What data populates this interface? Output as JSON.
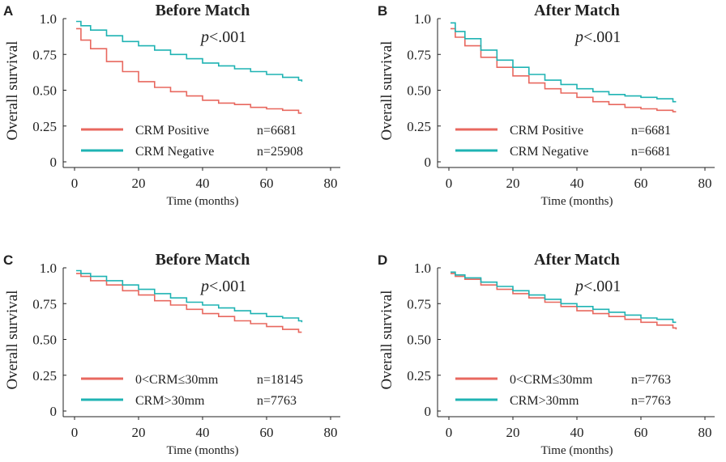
{
  "colors": {
    "positive": "#e8685f",
    "negative": "#1fb3b3",
    "axis": "#222222"
  },
  "chart_data": [
    {
      "type": "line",
      "panel_label": "A",
      "title": "Before Match",
      "pvalue_prefix": "p",
      "pvalue_suffix": "<.001",
      "xlabel": "Time (months)",
      "ylabel": "Overall survival",
      "xlim": [
        0,
        80
      ],
      "ylim": [
        0,
        1.0
      ],
      "x_ticks": [
        "0",
        "20",
        "40",
        "60",
        "80"
      ],
      "y_ticks": [
        "0",
        "0.25",
        "0.50",
        "0.75",
        "1.0"
      ],
      "legend": [
        {
          "label": "CRM Positive",
          "n": "n=6681",
          "color_key": "positive"
        },
        {
          "label": "CRM Negative",
          "n": "n=25908",
          "color_key": "negative"
        }
      ],
      "series": [
        {
          "name": "CRM Positive",
          "color_key": "positive",
          "x": [
            0.5,
            2,
            5,
            10,
            15,
            20,
            25,
            30,
            35,
            40,
            45,
            50,
            55,
            60,
            65,
            70,
            71
          ],
          "y": [
            0.93,
            0.85,
            0.79,
            0.7,
            0.63,
            0.56,
            0.52,
            0.49,
            0.46,
            0.43,
            0.41,
            0.4,
            0.38,
            0.37,
            0.36,
            0.34,
            0.34
          ]
        },
        {
          "name": "CRM Negative",
          "color_key": "negative",
          "x": [
            0.5,
            2,
            5,
            10,
            15,
            20,
            25,
            30,
            35,
            40,
            45,
            50,
            55,
            60,
            65,
            70,
            71
          ],
          "y": [
            0.98,
            0.95,
            0.92,
            0.88,
            0.84,
            0.81,
            0.78,
            0.75,
            0.72,
            0.69,
            0.67,
            0.65,
            0.63,
            0.61,
            0.59,
            0.57,
            0.56
          ]
        }
      ]
    },
    {
      "type": "line",
      "panel_label": "B",
      "title": "After Match",
      "pvalue_prefix": "p",
      "pvalue_suffix": "<.001",
      "xlabel": "Time (months)",
      "ylabel": "Overall survival",
      "xlim": [
        0,
        80
      ],
      "ylim": [
        0,
        1.0
      ],
      "x_ticks": [
        "0",
        "20",
        "40",
        "60",
        "80"
      ],
      "y_ticks": [
        "0",
        "0.25",
        "0.50",
        "0.75",
        "1.0"
      ],
      "legend": [
        {
          "label": "CRM Positive",
          "n": "n=6681",
          "color_key": "positive"
        },
        {
          "label": "CRM Negative",
          "n": "n=6681",
          "color_key": "negative"
        }
      ],
      "series": [
        {
          "name": "CRM Positive",
          "color_key": "positive",
          "x": [
            0.5,
            2,
            5,
            10,
            15,
            20,
            25,
            30,
            35,
            40,
            45,
            50,
            55,
            60,
            65,
            70,
            71
          ],
          "y": [
            0.93,
            0.87,
            0.81,
            0.73,
            0.66,
            0.6,
            0.55,
            0.51,
            0.48,
            0.45,
            0.42,
            0.4,
            0.38,
            0.37,
            0.36,
            0.35,
            0.35
          ]
        },
        {
          "name": "CRM Negative",
          "color_key": "negative",
          "x": [
            0.5,
            2,
            5,
            10,
            15,
            20,
            25,
            30,
            35,
            40,
            45,
            50,
            55,
            60,
            65,
            70,
            71
          ],
          "y": [
            0.97,
            0.91,
            0.86,
            0.78,
            0.71,
            0.66,
            0.61,
            0.57,
            0.54,
            0.51,
            0.49,
            0.47,
            0.46,
            0.45,
            0.44,
            0.42,
            0.42
          ]
        }
      ]
    },
    {
      "type": "line",
      "panel_label": "C",
      "title": "Before Match",
      "pvalue_prefix": "p",
      "pvalue_suffix": "<.001",
      "xlabel": "Time (months)",
      "ylabel": "Overall survival",
      "xlim": [
        0,
        80
      ],
      "ylim": [
        0,
        1.0
      ],
      "x_ticks": [
        "0",
        "20",
        "40",
        "60",
        "80"
      ],
      "y_ticks": [
        "0",
        "0.25",
        "0.50",
        "0.75",
        "1.0"
      ],
      "legend": [
        {
          "label": "0<CRM≤30mm",
          "n": "n=18145",
          "color_key": "positive"
        },
        {
          "label": "CRM>30mm",
          "n": "n=7763",
          "color_key": "negative"
        }
      ],
      "series": [
        {
          "name": "0<CRM≤30mm",
          "color_key": "positive",
          "x": [
            0.5,
            2,
            5,
            10,
            15,
            20,
            25,
            30,
            35,
            40,
            45,
            50,
            55,
            60,
            65,
            70,
            71
          ],
          "y": [
            0.96,
            0.94,
            0.91,
            0.88,
            0.84,
            0.81,
            0.77,
            0.74,
            0.71,
            0.68,
            0.66,
            0.63,
            0.61,
            0.59,
            0.57,
            0.55,
            0.55
          ]
        },
        {
          "name": "CRM>30mm",
          "color_key": "negative",
          "x": [
            0.5,
            2,
            5,
            10,
            15,
            20,
            25,
            30,
            35,
            40,
            45,
            50,
            55,
            60,
            65,
            70,
            71
          ],
          "y": [
            0.98,
            0.96,
            0.94,
            0.91,
            0.88,
            0.85,
            0.82,
            0.79,
            0.76,
            0.74,
            0.72,
            0.7,
            0.68,
            0.66,
            0.65,
            0.63,
            0.62
          ]
        }
      ]
    },
    {
      "type": "line",
      "panel_label": "D",
      "title": "After Match",
      "pvalue_prefix": "p",
      "pvalue_suffix": "<.001",
      "xlabel": "Time (months)",
      "ylabel": "Overall survival",
      "xlim": [
        0,
        80
      ],
      "ylim": [
        0,
        1.0
      ],
      "x_ticks": [
        "0",
        "20",
        "40",
        "60",
        "80"
      ],
      "y_ticks": [
        "0",
        "0.25",
        "0.50",
        "0.75",
        "1.0"
      ],
      "legend": [
        {
          "label": "0<CRM≤30mm",
          "n": "n=7763",
          "color_key": "positive"
        },
        {
          "label": "CRM>30mm",
          "n": "n=7763",
          "color_key": "negative"
        }
      ],
      "series": [
        {
          "name": "0<CRM≤30mm",
          "color_key": "positive",
          "x": [
            0.5,
            2,
            5,
            10,
            15,
            20,
            25,
            30,
            35,
            40,
            45,
            50,
            55,
            60,
            65,
            70,
            71
          ],
          "y": [
            0.96,
            0.94,
            0.92,
            0.88,
            0.85,
            0.82,
            0.79,
            0.76,
            0.73,
            0.7,
            0.68,
            0.66,
            0.64,
            0.62,
            0.6,
            0.58,
            0.57
          ]
        },
        {
          "name": "CRM>30mm",
          "color_key": "negative",
          "x": [
            0.5,
            2,
            5,
            10,
            15,
            20,
            25,
            30,
            35,
            40,
            45,
            50,
            55,
            60,
            65,
            70,
            71
          ],
          "y": [
            0.97,
            0.95,
            0.93,
            0.9,
            0.87,
            0.84,
            0.81,
            0.78,
            0.75,
            0.73,
            0.71,
            0.69,
            0.67,
            0.65,
            0.64,
            0.62,
            0.62
          ]
        }
      ]
    }
  ]
}
